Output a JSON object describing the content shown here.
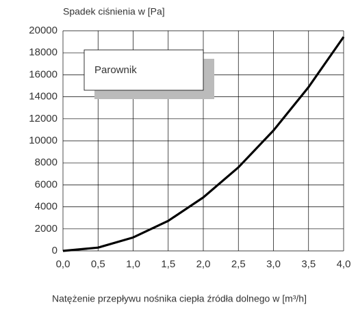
{
  "chart_data": {
    "type": "line",
    "title": "Spadek ciśnienia w [Pa]",
    "x_label": "Natężenie przepływu nośnika ciepła źródła dolnego w [m³/h]",
    "annotation": "Parownik",
    "x": [
      0,
      0.5,
      1.0,
      1.5,
      2.0,
      2.5,
      3.0,
      3.5,
      4.0
    ],
    "series": [
      {
        "name": "Parownik",
        "color": "#000000",
        "values": [
          0,
          300,
          1220,
          2730,
          4860,
          7590,
          10940,
          14880,
          19440
        ]
      }
    ],
    "xlim": [
      0,
      4
    ],
    "xticks": [
      {
        "value": 0,
        "label": "0,0"
      },
      {
        "value": 0.5,
        "label": "0,5"
      },
      {
        "value": 1,
        "label": "1,0"
      },
      {
        "value": 1.5,
        "label": "1,5"
      },
      {
        "value": 2,
        "label": "2,0"
      },
      {
        "value": 2.5,
        "label": "2,5"
      },
      {
        "value": 3,
        "label": "3,0"
      },
      {
        "value": 3.5,
        "label": "3,5"
      },
      {
        "value": 4,
        "label": "4,0"
      }
    ],
    "ylim": [
      0,
      20000
    ],
    "yticks": [
      0,
      2000,
      4000,
      6000,
      8000,
      10000,
      12000,
      14000,
      16000,
      18000,
      20000
    ],
    "grid": true
  }
}
